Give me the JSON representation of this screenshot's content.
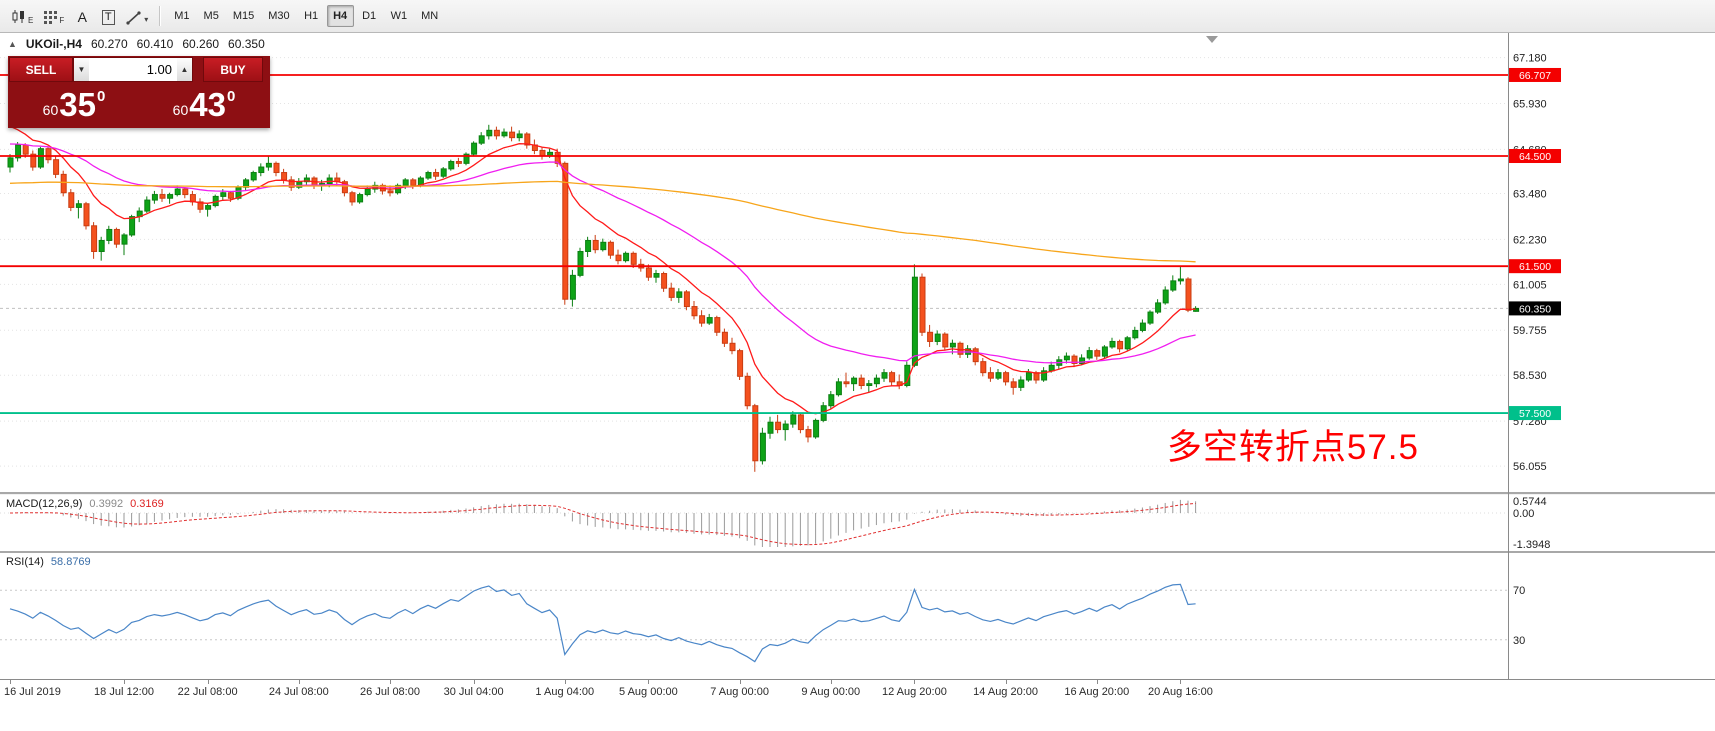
{
  "toolbar": {
    "tools": [
      {
        "name": "chart-candles-tool",
        "sub": "E"
      },
      {
        "name": "indicator-grid-tool",
        "sub": "F"
      },
      {
        "name": "text-tool",
        "label": "A"
      },
      {
        "name": "textbox-tool",
        "label": "T"
      },
      {
        "name": "draw-objects-tool",
        "dropdown": true
      }
    ],
    "timeframes": [
      "M1",
      "M5",
      "M15",
      "M30",
      "H1",
      "H4",
      "D1",
      "W1",
      "MN"
    ],
    "active_timeframe": "H4"
  },
  "symbol_info": {
    "label": "UKOil-,H4",
    "open": "60.270",
    "high": "60.410",
    "low": "60.260",
    "close": "60.350"
  },
  "trade_panel": {
    "sell_label": "SELL",
    "buy_label": "BUY",
    "volume": "1.00",
    "sell_price_small": "60",
    "sell_price_big": "35",
    "sell_price_sup": "0",
    "buy_price_small": "60",
    "buy_price_big": "43",
    "buy_price_sup": "0"
  },
  "annotation": {
    "text": "多空转折点57.5",
    "color": "#ff0000"
  },
  "price_axis": {
    "ticks": [
      {
        "label": "67.180",
        "value": 67.18
      },
      {
        "label": "65.930",
        "value": 65.93
      },
      {
        "label": "64.680",
        "value": 64.68
      },
      {
        "label": "63.480",
        "value": 63.48
      },
      {
        "label": "62.230",
        "value": 62.23
      },
      {
        "label": "61.005",
        "value": 61.005
      },
      {
        "label": "59.755",
        "value": 59.755
      },
      {
        "label": "58.530",
        "value": 58.53
      },
      {
        "label": "57.280",
        "value": 57.28
      },
      {
        "label": "56.055",
        "value": 56.055
      }
    ],
    "levels": [
      {
        "label": "66.707",
        "value": 66.707,
        "color": "#f40000"
      },
      {
        "label": "64.500",
        "value": 64.5,
        "color": "#f40000"
      },
      {
        "label": "61.500",
        "value": 61.5,
        "color": "#f40000"
      },
      {
        "label": "57.500",
        "value": 57.5,
        "color": "#00c08b"
      }
    ],
    "current": {
      "label": "60.350",
      "value": 60.35,
      "color": "#000000"
    }
  },
  "chart_data": {
    "type": "candlestick",
    "symbol": "UKOil-",
    "timeframe": "H4",
    "price_range": [
      55.35,
      67.85
    ],
    "style": {
      "up": "#0ea317",
      "up_border": "#0b7f12",
      "down": "#f4511e",
      "down_border": "#c93d12"
    },
    "overlays": [
      {
        "name": "ma-fast",
        "period": 10,
        "seed": 65.5,
        "color": "#ff1a1a"
      },
      {
        "name": "ma-medium",
        "period": 34,
        "seed": 64.85,
        "color": "#f01ef0"
      },
      {
        "name": "ma-slow",
        "period": 250,
        "seed": 63.75,
        "color": "#f7a51b"
      }
    ],
    "time_labels": [
      {
        "label": "16 Jul 2019",
        "index": 0
      },
      {
        "label": "18 Jul 12:00",
        "index": 15
      },
      {
        "label": "22 Jul 08:00",
        "index": 26
      },
      {
        "label": "24 Jul 08:00",
        "index": 38
      },
      {
        "label": "26 Jul 08:00",
        "index": 50
      },
      {
        "label": "30 Jul 04:00",
        "index": 61
      },
      {
        "label": "1 Aug 04:00",
        "index": 73
      },
      {
        "label": "5 Aug 00:00",
        "index": 84
      },
      {
        "label": "7 Aug 00:00",
        "index": 96
      },
      {
        "label": "9 Aug 00:00",
        "index": 108
      },
      {
        "label": "12 Aug 20:00",
        "index": 119
      },
      {
        "label": "14 Aug 20:00",
        "index": 131
      },
      {
        "label": "16 Aug 20:00",
        "index": 143
      },
      {
        "label": "20 Aug 16:00",
        "index": 154
      }
    ],
    "ohlc": [
      [
        64.2,
        64.55,
        64.05,
        64.45
      ],
      [
        64.45,
        64.88,
        64.35,
        64.8
      ],
      [
        64.8,
        64.85,
        64.45,
        64.55
      ],
      [
        64.55,
        64.65,
        64.1,
        64.2
      ],
      [
        64.2,
        64.75,
        64.15,
        64.7
      ],
      [
        64.7,
        64.75,
        64.3,
        64.4
      ],
      [
        64.4,
        64.5,
        63.9,
        64.0
      ],
      [
        64.0,
        64.1,
        63.4,
        63.5
      ],
      [
        63.5,
        63.6,
        63.0,
        63.1
      ],
      [
        63.1,
        63.3,
        62.8,
        63.2
      ],
      [
        63.2,
        63.25,
        62.5,
        62.6
      ],
      [
        62.6,
        62.7,
        61.7,
        61.9
      ],
      [
        61.9,
        62.3,
        61.65,
        62.2
      ],
      [
        62.2,
        62.6,
        62.1,
        62.5
      ],
      [
        62.5,
        62.55,
        62.0,
        62.1
      ],
      [
        62.1,
        62.4,
        61.8,
        62.35
      ],
      [
        62.35,
        62.9,
        62.3,
        62.85
      ],
      [
        62.85,
        63.1,
        62.7,
        63.0
      ],
      [
        63.0,
        63.4,
        62.95,
        63.3
      ],
      [
        63.3,
        63.55,
        63.2,
        63.45
      ],
      [
        63.45,
        63.6,
        63.25,
        63.35
      ],
      [
        63.35,
        63.5,
        63.2,
        63.45
      ],
      [
        63.45,
        63.7,
        63.4,
        63.6
      ],
      [
        63.6,
        63.65,
        63.35,
        63.45
      ],
      [
        63.45,
        63.55,
        63.15,
        63.25
      ],
      [
        63.25,
        63.35,
        62.95,
        63.05
      ],
      [
        63.05,
        63.2,
        62.85,
        63.15
      ],
      [
        63.15,
        63.45,
        63.1,
        63.4
      ],
      [
        63.4,
        63.6,
        63.3,
        63.5
      ],
      [
        63.5,
        63.55,
        63.25,
        63.35
      ],
      [
        63.35,
        63.7,
        63.3,
        63.65
      ],
      [
        63.65,
        63.9,
        63.55,
        63.85
      ],
      [
        63.85,
        64.1,
        63.8,
        64.05
      ],
      [
        64.05,
        64.3,
        63.95,
        64.2
      ],
      [
        64.2,
        64.5,
        64.1,
        64.3
      ],
      [
        64.3,
        64.35,
        63.95,
        64.05
      ],
      [
        64.05,
        64.15,
        63.75,
        63.85
      ],
      [
        63.85,
        63.95,
        63.55,
        63.65
      ],
      [
        63.65,
        63.9,
        63.6,
        63.8
      ],
      [
        63.8,
        64.0,
        63.7,
        63.9
      ],
      [
        63.9,
        63.95,
        63.6,
        63.7
      ],
      [
        63.7,
        63.85,
        63.55,
        63.75
      ],
      [
        63.75,
        64.0,
        63.65,
        63.9
      ],
      [
        63.9,
        64.05,
        63.7,
        63.8
      ],
      [
        63.8,
        63.85,
        63.4,
        63.5
      ],
      [
        63.5,
        63.55,
        63.15,
        63.25
      ],
      [
        63.25,
        63.5,
        63.2,
        63.45
      ],
      [
        63.45,
        63.7,
        63.4,
        63.6
      ],
      [
        63.6,
        63.8,
        63.5,
        63.7
      ],
      [
        63.7,
        63.75,
        63.45,
        63.55
      ],
      [
        63.55,
        63.7,
        63.4,
        63.5
      ],
      [
        63.5,
        63.75,
        63.45,
        63.7
      ],
      [
        63.7,
        63.9,
        63.6,
        63.85
      ],
      [
        63.85,
        63.9,
        63.6,
        63.7
      ],
      [
        63.7,
        63.95,
        63.65,
        63.9
      ],
      [
        63.9,
        64.1,
        63.85,
        64.05
      ],
      [
        64.05,
        64.15,
        63.85,
        63.95
      ],
      [
        63.95,
        64.2,
        63.9,
        64.15
      ],
      [
        64.15,
        64.4,
        64.1,
        64.35
      ],
      [
        64.35,
        64.45,
        64.2,
        64.3
      ],
      [
        64.3,
        64.6,
        64.25,
        64.55
      ],
      [
        64.55,
        64.9,
        64.5,
        64.85
      ],
      [
        64.85,
        65.15,
        64.8,
        65.05
      ],
      [
        65.05,
        65.35,
        64.95,
        65.2
      ],
      [
        65.2,
        65.3,
        64.95,
        65.05
      ],
      [
        65.05,
        65.25,
        65.0,
        65.15
      ],
      [
        65.15,
        65.3,
        64.9,
        65.0
      ],
      [
        65.0,
        65.2,
        64.9,
        65.1
      ],
      [
        65.1,
        65.15,
        64.7,
        64.8
      ],
      [
        64.8,
        64.95,
        64.55,
        64.65
      ],
      [
        64.65,
        64.75,
        64.4,
        64.5
      ],
      [
        64.5,
        64.7,
        64.45,
        64.6
      ],
      [
        64.6,
        64.7,
        64.2,
        64.3
      ],
      [
        64.3,
        64.35,
        60.45,
        60.6
      ],
      [
        60.6,
        61.4,
        60.4,
        61.25
      ],
      [
        61.25,
        62.0,
        61.2,
        61.9
      ],
      [
        61.9,
        62.3,
        61.75,
        62.2
      ],
      [
        62.2,
        62.35,
        61.85,
        61.95
      ],
      [
        61.95,
        62.25,
        61.9,
        62.15
      ],
      [
        62.15,
        62.2,
        61.7,
        61.8
      ],
      [
        61.8,
        61.95,
        61.55,
        61.65
      ],
      [
        61.65,
        61.9,
        61.6,
        61.85
      ],
      [
        61.85,
        61.9,
        61.45,
        61.55
      ],
      [
        61.55,
        61.7,
        61.35,
        61.45
      ],
      [
        61.45,
        61.55,
        61.1,
        61.2
      ],
      [
        61.2,
        61.4,
        61.05,
        61.3
      ],
      [
        61.3,
        61.35,
        60.8,
        60.9
      ],
      [
        60.9,
        61.05,
        60.55,
        60.65
      ],
      [
        60.65,
        60.9,
        60.5,
        60.8
      ],
      [
        60.8,
        60.85,
        60.3,
        60.4
      ],
      [
        60.4,
        60.55,
        60.05,
        60.15
      ],
      [
        60.15,
        60.3,
        59.85,
        59.95
      ],
      [
        59.95,
        60.2,
        59.9,
        60.1
      ],
      [
        60.1,
        60.15,
        59.6,
        59.7
      ],
      [
        59.7,
        59.8,
        59.3,
        59.4
      ],
      [
        59.4,
        59.55,
        59.1,
        59.2
      ],
      [
        59.2,
        59.25,
        58.4,
        58.5
      ],
      [
        58.5,
        58.6,
        57.6,
        57.7
      ],
      [
        57.7,
        57.75,
        55.9,
        56.2
      ],
      [
        56.2,
        57.1,
        56.1,
        56.95
      ],
      [
        56.95,
        57.4,
        56.8,
        57.25
      ],
      [
        57.25,
        57.45,
        56.95,
        57.05
      ],
      [
        57.05,
        57.3,
        56.75,
        57.2
      ],
      [
        57.2,
        57.55,
        57.1,
        57.45
      ],
      [
        57.45,
        57.5,
        56.95,
        57.05
      ],
      [
        57.05,
        57.15,
        56.7,
        56.85
      ],
      [
        56.85,
        57.35,
        56.8,
        57.3
      ],
      [
        57.3,
        57.8,
        57.25,
        57.7
      ],
      [
        57.7,
        58.1,
        57.6,
        58.0
      ],
      [
        58.0,
        58.45,
        57.95,
        58.35
      ],
      [
        58.35,
        58.6,
        58.2,
        58.3
      ],
      [
        58.3,
        58.5,
        58.1,
        58.45
      ],
      [
        58.45,
        58.55,
        58.15,
        58.25
      ],
      [
        58.25,
        58.4,
        58.05,
        58.3
      ],
      [
        58.3,
        58.55,
        58.2,
        58.45
      ],
      [
        58.45,
        58.7,
        58.35,
        58.6
      ],
      [
        58.6,
        58.65,
        58.25,
        58.35
      ],
      [
        58.35,
        58.55,
        58.15,
        58.25
      ],
      [
        58.25,
        58.9,
        58.2,
        58.8
      ],
      [
        58.8,
        61.55,
        58.75,
        61.2
      ],
      [
        61.2,
        61.3,
        59.6,
        59.7
      ],
      [
        59.7,
        59.9,
        59.3,
        59.45
      ],
      [
        59.45,
        59.75,
        59.35,
        59.65
      ],
      [
        59.65,
        59.7,
        59.2,
        59.3
      ],
      [
        59.3,
        59.5,
        59.1,
        59.4
      ],
      [
        59.4,
        59.45,
        59.0,
        59.1
      ],
      [
        59.1,
        59.35,
        59.0,
        59.25
      ],
      [
        59.25,
        59.3,
        58.8,
        58.9
      ],
      [
        58.9,
        59.0,
        58.5,
        58.6
      ],
      [
        58.6,
        58.75,
        58.35,
        58.45
      ],
      [
        58.45,
        58.7,
        58.4,
        58.6
      ],
      [
        58.6,
        58.65,
        58.25,
        58.35
      ],
      [
        58.35,
        58.45,
        58.0,
        58.2
      ],
      [
        58.2,
        58.5,
        58.1,
        58.4
      ],
      [
        58.4,
        58.7,
        58.35,
        58.6
      ],
      [
        58.6,
        58.65,
        58.3,
        58.4
      ],
      [
        58.4,
        58.75,
        58.35,
        58.65
      ],
      [
        58.65,
        58.9,
        58.6,
        58.8
      ],
      [
        58.8,
        59.05,
        58.7,
        58.95
      ],
      [
        58.95,
        59.15,
        58.85,
        59.05
      ],
      [
        59.05,
        59.1,
        58.75,
        58.85
      ],
      [
        58.85,
        59.1,
        58.8,
        59.0
      ],
      [
        59.0,
        59.3,
        58.95,
        59.2
      ],
      [
        59.2,
        59.25,
        58.95,
        59.05
      ],
      [
        59.05,
        59.35,
        59.0,
        59.3
      ],
      [
        59.3,
        59.55,
        59.25,
        59.45
      ],
      [
        59.45,
        59.5,
        59.15,
        59.25
      ],
      [
        59.25,
        59.6,
        59.2,
        59.55
      ],
      [
        59.55,
        59.85,
        59.5,
        59.75
      ],
      [
        59.75,
        60.05,
        59.7,
        59.95
      ],
      [
        59.95,
        60.3,
        59.9,
        60.25
      ],
      [
        60.25,
        60.6,
        60.2,
        60.5
      ],
      [
        60.5,
        60.95,
        60.45,
        60.85
      ],
      [
        60.85,
        61.25,
        60.8,
        61.1
      ],
      [
        61.1,
        61.5,
        61.0,
        61.15
      ],
      [
        61.15,
        61.2,
        60.25,
        60.3
      ],
      [
        60.27,
        60.41,
        60.26,
        60.35
      ]
    ]
  },
  "macd": {
    "name": "MACD(12,26,9)",
    "main": "0.3992",
    "signal_value": "0.3169",
    "fast": 12,
    "slow": 26,
    "signal": 9,
    "hist_color": "#9a9a9a",
    "signal_color": "#e03131",
    "axis": [
      {
        "label": "0.5744",
        "value": 0.5744
      },
      {
        "label": "0.00",
        "value": 0
      },
      {
        "label": "-1.3948",
        "value": -1.3948
      }
    ]
  },
  "rsi": {
    "name": "RSI(14)",
    "value": "58.8769",
    "period": 14,
    "line_color": "#4a86c8",
    "levels": [
      {
        "label": "70",
        "value": 70
      },
      {
        "label": "30",
        "value": 30
      }
    ]
  }
}
